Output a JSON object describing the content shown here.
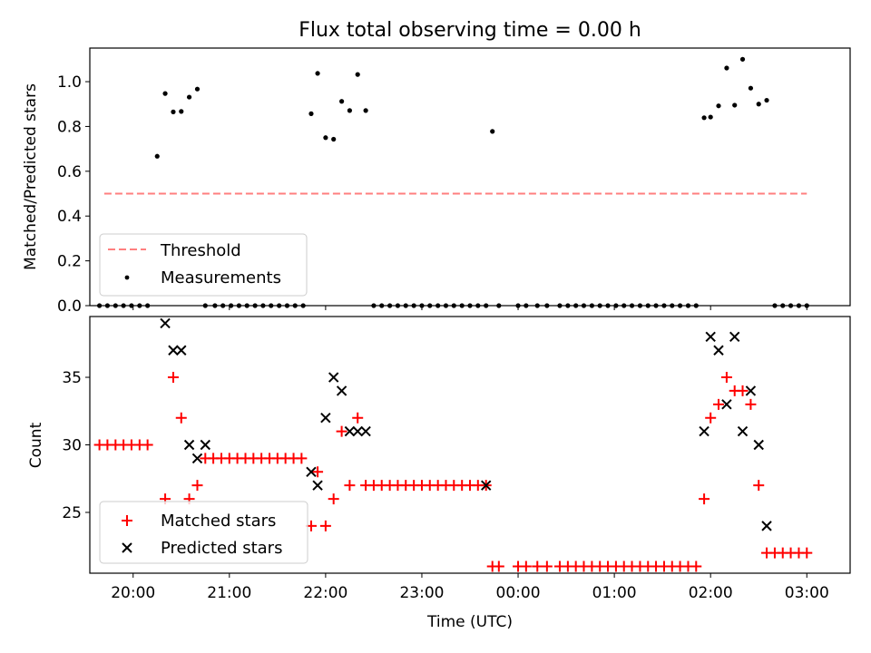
{
  "figure": {
    "title": "Flux total observing time = 0.00 h"
  },
  "chart_data": [
    {
      "type": "scatter",
      "ylabel": "Matched/Predicted stars",
      "xlabel": "",
      "xlim": [
        19.55,
        27.45
      ],
      "ylim": [
        0.0,
        1.15
      ],
      "yticks": [
        0.0,
        0.2,
        0.4,
        0.6,
        0.8,
        1.0
      ],
      "ytick_labels": [
        "0.0",
        "0.2",
        "0.4",
        "0.6",
        "0.8",
        "1.0"
      ],
      "xticks": [
        20,
        21,
        22,
        23,
        24,
        25,
        26,
        27
      ],
      "legend_position": "lower-left",
      "threshold": {
        "name": "Threshold",
        "value": 0.5,
        "x_range": [
          19.7,
          27.0
        ],
        "color": "#ff7f7f"
      },
      "series": [
        {
          "name": "Measurements",
          "color": "#000000",
          "x": [
            19.65,
            19.733,
            19.817,
            19.9,
            19.983,
            20.067,
            20.15,
            20.25,
            20.333,
            20.417,
            20.5,
            20.583,
            20.667,
            20.75,
            20.85,
            20.933,
            21.017,
            21.1,
            21.183,
            21.267,
            21.35,
            21.433,
            21.517,
            21.6,
            21.683,
            21.767,
            21.85,
            21.917,
            22.0,
            22.083,
            22.167,
            22.25,
            22.333,
            22.417,
            22.5,
            22.583,
            22.667,
            22.75,
            22.833,
            22.917,
            23.0,
            23.083,
            23.167,
            23.25,
            23.333,
            23.417,
            23.5,
            23.583,
            23.667,
            23.733,
            23.8,
            24.0,
            24.083,
            24.2,
            24.3,
            24.433,
            24.517,
            24.6,
            24.683,
            24.767,
            24.85,
            24.933,
            25.017,
            25.1,
            25.183,
            25.267,
            25.35,
            25.433,
            25.517,
            25.6,
            25.683,
            25.767,
            25.85,
            25.933,
            26.0,
            26.083,
            26.167,
            26.25,
            26.333,
            26.417,
            26.5,
            26.583,
            26.667,
            26.75,
            26.833,
            26.917,
            27.0
          ],
          "y": [
            0,
            0,
            0,
            0,
            0,
            0,
            0,
            0.667,
            0.947,
            0.865,
            0.867,
            0.931,
            0.967,
            0,
            0,
            0,
            0,
            0,
            0,
            0,
            0,
            0,
            0,
            0,
            0,
            0,
            0.857,
            1.037,
            0.75,
            0.743,
            0.912,
            0.871,
            1.032,
            0.871,
            0,
            0,
            0,
            0,
            0,
            0,
            0,
            0,
            0,
            0,
            0,
            0,
            0,
            0,
            0,
            0.778,
            0,
            0,
            0,
            0,
            0,
            0,
            0,
            0,
            0,
            0,
            0,
            0,
            0,
            0,
            0,
            0,
            0,
            0,
            0,
            0,
            0,
            0,
            0,
            0.839,
            0.842,
            0.892,
            1.061,
            0.895,
            1.1,
            0.971,
            0.9,
            0.917,
            0,
            0,
            0,
            0,
            0
          ]
        }
      ]
    },
    {
      "type": "scatter",
      "xlabel": "Time (UTC)",
      "ylabel": "Count",
      "xlim": [
        19.55,
        27.45
      ],
      "ylim": [
        20.5,
        39.5
      ],
      "yticks": [
        25,
        30,
        35
      ],
      "ytick_labels": [
        "25",
        "30",
        "35"
      ],
      "xticks": [
        20,
        21,
        22,
        23,
        24,
        25,
        26,
        27
      ],
      "xtick_labels": [
        "20:00",
        "21:00",
        "22:00",
        "23:00",
        "00:00",
        "01:00",
        "02:00",
        "03:00"
      ],
      "legend_position": "lower-left",
      "series": [
        {
          "name": "Matched stars",
          "marker": "plus",
          "color": "#ff0000",
          "x": [
            19.65,
            19.733,
            19.817,
            19.9,
            19.983,
            20.067,
            20.15,
            20.333,
            20.417,
            20.5,
            20.583,
            20.667,
            20.75,
            20.833,
            20.917,
            21.0,
            21.083,
            21.167,
            21.25,
            21.333,
            21.417,
            21.5,
            21.583,
            21.667,
            21.75,
            21.85,
            21.917,
            22.0,
            22.083,
            22.167,
            22.25,
            22.333,
            22.417,
            22.5,
            22.583,
            22.667,
            22.75,
            22.833,
            22.917,
            23.0,
            23.083,
            23.167,
            23.25,
            23.333,
            23.417,
            23.5,
            23.583,
            23.667,
            23.733,
            23.8,
            24.0,
            24.083,
            24.2,
            24.3,
            24.433,
            24.517,
            24.6,
            24.683,
            24.767,
            24.85,
            24.933,
            25.017,
            25.1,
            25.183,
            25.267,
            25.35,
            25.433,
            25.517,
            25.6,
            25.683,
            25.767,
            25.85,
            25.933,
            26.0,
            26.083,
            26.167,
            26.25,
            26.333,
            26.417,
            26.5,
            26.583,
            26.667,
            26.75,
            26.833,
            26.917,
            27.0
          ],
          "y": [
            30,
            30,
            30,
            30,
            30,
            30,
            30,
            26,
            35,
            32,
            26,
            27,
            29,
            29,
            29,
            29,
            29,
            29,
            29,
            29,
            29,
            29,
            29,
            29,
            29,
            24,
            28,
            24,
            26,
            31,
            27,
            32,
            27,
            27,
            27,
            27,
            27,
            27,
            27,
            27,
            27,
            27,
            27,
            27,
            27,
            27,
            27,
            27,
            21,
            21,
            21,
            21,
            21,
            21,
            21,
            21,
            21,
            21,
            21,
            21,
            21,
            21,
            21,
            21,
            21,
            21,
            21,
            21,
            21,
            21,
            21,
            21,
            26,
            32,
            33,
            35,
            34,
            34,
            33,
            27,
            22,
            22,
            22,
            22,
            22,
            22
          ]
        },
        {
          "name": "Predicted stars",
          "marker": "x",
          "color": "#000000",
          "x": [
            20.333,
            20.417,
            20.5,
            20.583,
            20.667,
            20.75,
            21.85,
            21.917,
            22.0,
            22.083,
            22.167,
            22.25,
            22.333,
            22.417,
            23.667,
            25.933,
            26.0,
            26.083,
            26.167,
            26.25,
            26.333,
            26.417,
            26.5,
            26.583
          ],
          "y": [
            39,
            37,
            37,
            30,
            29,
            30,
            28,
            27,
            32,
            35,
            34,
            31,
            31,
            31,
            27,
            31,
            38,
            37,
            33,
            38,
            31,
            34,
            30,
            24
          ]
        }
      ]
    }
  ]
}
